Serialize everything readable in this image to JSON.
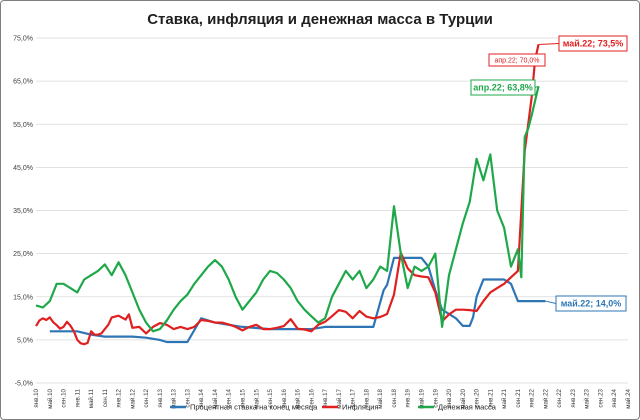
{
  "chart_data": {
    "type": "line",
    "title": "Ставка, инфляция и денежная масса в Турции",
    "ylim": [
      -5,
      75
    ],
    "yticks": [
      -5,
      5,
      15,
      25,
      35,
      45,
      55,
      65,
      75
    ],
    "ytick_labels": [
      "-5,0%",
      "5,0%",
      "15,0%",
      "25,0%",
      "35,0%",
      "45,0%",
      "55,0%",
      "65,0%",
      "75,0%"
    ],
    "grid": "horizontal",
    "legend_position": "bottom",
    "x_labels": [
      "янв.10",
      "май.10",
      "сен.10",
      "янв.11",
      "май.11",
      "сен.11",
      "янв.12",
      "май.12",
      "сен.12",
      "янв.13",
      "май.13",
      "сен.13",
      "янв.14",
      "май.14",
      "сен.14",
      "янв.15",
      "май.15",
      "сен.15",
      "янв.16",
      "май.16",
      "сен.16",
      "янв.17",
      "май.17",
      "сен.17",
      "янв.18",
      "май.18",
      "сен.18",
      "янв.19",
      "май.19",
      "сен.19",
      "янв.20",
      "май.20",
      "сен.20",
      "янв.21",
      "май.21",
      "сен.21",
      "янв.22",
      "май.22",
      "сен.22",
      "янв.23",
      "май.23",
      "сен.23",
      "янв.24",
      "май.24"
    ],
    "series": [
      {
        "name": "Процентная ставка на конец месяца",
        "color": "#2e75b6",
        "points": [
          [
            4,
            7
          ],
          [
            8,
            7
          ],
          [
            12,
            7
          ],
          [
            16,
            6.2
          ],
          [
            20,
            5.75
          ],
          [
            24,
            5.75
          ],
          [
            28,
            5.75
          ],
          [
            32,
            5.5
          ],
          [
            36,
            5
          ],
          [
            38,
            4.5
          ],
          [
            42,
            4.5
          ],
          [
            44,
            4.5
          ],
          [
            48,
            10
          ],
          [
            52,
            9
          ],
          [
            56,
            8.5
          ],
          [
            60,
            8
          ],
          [
            64,
            7.75
          ],
          [
            68,
            7.5
          ],
          [
            72,
            7.5
          ],
          [
            76,
            7.5
          ],
          [
            80,
            7.5
          ],
          [
            84,
            8
          ],
          [
            88,
            8
          ],
          [
            96,
            8
          ],
          [
            98,
            8
          ],
          [
            101,
            16.5
          ],
          [
            102,
            17.75
          ],
          [
            104,
            24
          ],
          [
            108,
            24
          ],
          [
            112,
            24
          ],
          [
            114,
            22
          ],
          [
            116,
            16.5
          ],
          [
            118,
            12
          ],
          [
            122,
            10
          ],
          [
            124,
            8.25
          ],
          [
            126,
            8.25
          ],
          [
            127,
            10.25
          ],
          [
            128,
            15
          ],
          [
            129,
            17
          ],
          [
            130,
            19
          ],
          [
            134,
            19
          ],
          [
            136,
            19
          ],
          [
            138,
            18
          ],
          [
            139,
            16
          ],
          [
            140,
            14
          ],
          [
            146,
            14
          ],
          [
            148,
            14
          ]
        ]
      },
      {
        "name": "Инфляция",
        "color": "#e02020",
        "points": [
          [
            0,
            8.2
          ],
          [
            1,
            9.5
          ],
          [
            2,
            10
          ],
          [
            3,
            9.6
          ],
          [
            4,
            10.2
          ],
          [
            5,
            9.1
          ],
          [
            6,
            8.4
          ],
          [
            7,
            7.6
          ],
          [
            8,
            8
          ],
          [
            9,
            9.2
          ],
          [
            10,
            8.3
          ],
          [
            11,
            7
          ],
          [
            12,
            5
          ],
          [
            13,
            4.2
          ],
          [
            14,
            4
          ],
          [
            15,
            4.3
          ],
          [
            16,
            7
          ],
          [
            17,
            6.2
          ],
          [
            18,
            6.2
          ],
          [
            19,
            6.5
          ],
          [
            20,
            7.5
          ],
          [
            21,
            8.5
          ],
          [
            22,
            10.2
          ],
          [
            24,
            10.6
          ],
          [
            26,
            9.7
          ],
          [
            27,
            10.9
          ],
          [
            28,
            7.8
          ],
          [
            30,
            8
          ],
          [
            32,
            6.5
          ],
          [
            34,
            8
          ],
          [
            36,
            8.9
          ],
          [
            38,
            8.5
          ],
          [
            40,
            7.5
          ],
          [
            42,
            8
          ],
          [
            44,
            7.5
          ],
          [
            46,
            8
          ],
          [
            48,
            9.6
          ],
          [
            50,
            9.4
          ],
          [
            52,
            9
          ],
          [
            54,
            9
          ],
          [
            56,
            8.6
          ],
          [
            58,
            8
          ],
          [
            60,
            7.2
          ],
          [
            62,
            8
          ],
          [
            64,
            8.5
          ],
          [
            66,
            7.5
          ],
          [
            68,
            7.5
          ],
          [
            70,
            7.8
          ],
          [
            72,
            8.2
          ],
          [
            74,
            9.8
          ],
          [
            76,
            7.6
          ],
          [
            78,
            7.4
          ],
          [
            80,
            7
          ],
          [
            82,
            8.5
          ],
          [
            84,
            9.2
          ],
          [
            86,
            10.5
          ],
          [
            88,
            11.9
          ],
          [
            90,
            11.5
          ],
          [
            92,
            10
          ],
          [
            94,
            11.7
          ],
          [
            96,
            10.4
          ],
          [
            98,
            10
          ],
          [
            100,
            10.3
          ],
          [
            102,
            11
          ],
          [
            104,
            15.5
          ],
          [
            106,
            25.2
          ],
          [
            108,
            21.6
          ],
          [
            110,
            20
          ],
          [
            112,
            19.7
          ],
          [
            114,
            19.5
          ],
          [
            116,
            16
          ],
          [
            118,
            9.3
          ],
          [
            120,
            10.9
          ],
          [
            122,
            12
          ],
          [
            124,
            12
          ],
          [
            126,
            11.9
          ],
          [
            128,
            11.7
          ],
          [
            130,
            14
          ],
          [
            132,
            16
          ],
          [
            134,
            17
          ],
          [
            136,
            18
          ],
          [
            138,
            19.5
          ],
          [
            140,
            21
          ],
          [
            142,
            48.7
          ],
          [
            144,
            61.1
          ],
          [
            145,
            69.97
          ],
          [
            146,
            73.5
          ]
        ]
      },
      {
        "name": "Денежная масса",
        "color": "#1fa84a",
        "points": [
          [
            0,
            13
          ],
          [
            2,
            12.5
          ],
          [
            4,
            14
          ],
          [
            6,
            18
          ],
          [
            8,
            18
          ],
          [
            10,
            17
          ],
          [
            12,
            16
          ],
          [
            14,
            19
          ],
          [
            16,
            20
          ],
          [
            18,
            21
          ],
          [
            20,
            22.5
          ],
          [
            22,
            20
          ],
          [
            24,
            23
          ],
          [
            26,
            20
          ],
          [
            28,
            16
          ],
          [
            30,
            12
          ],
          [
            32,
            9
          ],
          [
            34,
            7
          ],
          [
            36,
            7.5
          ],
          [
            38,
            9.5
          ],
          [
            40,
            12
          ],
          [
            42,
            14
          ],
          [
            44,
            15.5
          ],
          [
            46,
            18
          ],
          [
            48,
            20
          ],
          [
            50,
            22
          ],
          [
            52,
            23.5
          ],
          [
            54,
            22
          ],
          [
            56,
            19
          ],
          [
            58,
            15
          ],
          [
            60,
            12
          ],
          [
            62,
            14
          ],
          [
            64,
            16
          ],
          [
            66,
            19
          ],
          [
            68,
            21
          ],
          [
            70,
            20.5
          ],
          [
            72,
            19
          ],
          [
            74,
            17
          ],
          [
            76,
            14
          ],
          [
            78,
            12
          ],
          [
            80,
            10.5
          ],
          [
            82,
            9
          ],
          [
            84,
            10
          ],
          [
            86,
            15
          ],
          [
            88,
            18
          ],
          [
            90,
            21
          ],
          [
            92,
            19
          ],
          [
            94,
            21
          ],
          [
            96,
            17
          ],
          [
            98,
            19
          ],
          [
            100,
            22
          ],
          [
            102,
            21
          ],
          [
            104,
            36
          ],
          [
            106,
            25
          ],
          [
            108,
            17
          ],
          [
            110,
            22
          ],
          [
            112,
            21
          ],
          [
            114,
            22
          ],
          [
            116,
            25
          ],
          [
            118,
            8
          ],
          [
            120,
            20
          ],
          [
            122,
            26
          ],
          [
            124,
            32
          ],
          [
            126,
            37
          ],
          [
            128,
            47
          ],
          [
            130,
            42
          ],
          [
            132,
            48
          ],
          [
            134,
            35
          ],
          [
            136,
            31
          ],
          [
            138,
            22
          ],
          [
            140,
            26
          ],
          [
            141,
            19.5
          ],
          [
            142,
            52
          ],
          [
            143,
            54
          ],
          [
            144,
            57
          ],
          [
            146,
            63.8
          ]
        ]
      }
    ],
    "annotations": [
      {
        "text": "май.22; 73,5%",
        "series": "Инфляция",
        "style": "large"
      },
      {
        "text": "апр.22; 70,0%",
        "series": "Инфляция",
        "style": "small"
      },
      {
        "text": "апр.22; 63,8%",
        "series": "Денежная масса",
        "style": "large"
      },
      {
        "text": "май.22; 14,0%",
        "series": "Процентная ставка на конец месяца",
        "style": "large"
      }
    ]
  }
}
